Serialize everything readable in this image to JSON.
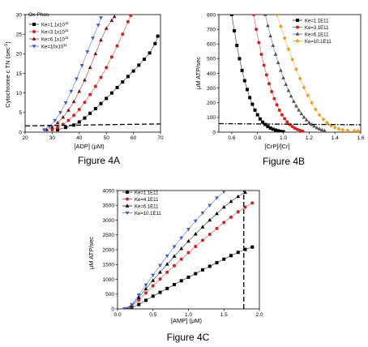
{
  "figure_4a": {
    "caption": "Figure 4A",
    "panel_label": "Ox-Phos",
    "legend": [
      {
        "label": "Ke=1.1x10",
        "sup": "11"
      },
      {
        "label": "Ke=3.1x10",
        "sup": "11"
      },
      {
        "label": "Ke=6.1x10",
        "sup": "11"
      },
      {
        "label": "Ke=10x10",
        "sup": "11"
      }
    ],
    "xlabel": "[ADP] (μM)",
    "ylabel_main": "Cytochrome c TN (sec",
    "ylabel_sup": "-1",
    "ylabel_end": ")",
    "xticks": [
      "20",
      "30",
      "40",
      "50",
      "60",
      "70"
    ],
    "yticks": [
      "0",
      "5",
      "10",
      "15",
      "20",
      "25",
      "30"
    ]
  },
  "figure_4b": {
    "caption": "Figure 4B",
    "legend": [
      "Ke=1.1E11",
      "Ke=3.1E11",
      "Ke=6.1E11",
      "Ke=10.1E11"
    ],
    "xlabel": "[CrP]/[Cr]",
    "ylabel": "μM ATP/sec",
    "xticks": [
      "0.6",
      "0.8",
      "1.0",
      "1.2",
      "1.4",
      "1.6"
    ],
    "yticks": [
      "0",
      "100",
      "200",
      "300",
      "400",
      "500",
      "600",
      "700",
      "800"
    ]
  },
  "figure_4c": {
    "caption": "Figure 4C",
    "legend": [
      "Ke=1.1E11",
      "Ke=4.1E11",
      "Ke=6.1E11",
      "Ke=10.1E11"
    ],
    "xlabel": "[AMP] (μM)",
    "ylabel": "μM ATP/sec",
    "xticks": [
      "0.0",
      "0.5",
      "1.0",
      "1.5",
      "2.0"
    ],
    "yticks": [
      "0",
      "500",
      "1000",
      "1500",
      "2000",
      "2500",
      "3000",
      "3500",
      "4000"
    ]
  },
  "colors": {
    "black": "#000000",
    "red": "#d62020",
    "darkred": "#7a1010",
    "blue": "#3a5bd9",
    "orange": "#f0a020",
    "gray": "#555555"
  },
  "chart_data": [
    {
      "type": "line",
      "xlim": [
        20,
        70
      ],
      "ylim": [
        0,
        30
      ],
      "series": [
        {
          "name": "Ke=1.1x10^11",
          "marker": "square",
          "color": "black",
          "points": [
            [
              32,
              0.6
            ],
            [
              35,
              1.2
            ],
            [
              38,
              1.8
            ],
            [
              40,
              2.6
            ],
            [
              42,
              3.6
            ],
            [
              44,
              4.8
            ],
            [
              46,
              6.0
            ],
            [
              48,
              7.3
            ],
            [
              50,
              8.6
            ],
            [
              52,
              10.0
            ],
            [
              54,
              11.4
            ],
            [
              56,
              12.8
            ],
            [
              58,
              14.2
            ],
            [
              60,
              15.6
            ],
            [
              62,
              17.1
            ],
            [
              64,
              18.6
            ],
            [
              66,
              20.2
            ],
            [
              68,
              22.6
            ],
            [
              69,
              24.5
            ]
          ]
        },
        {
          "name": "Ke=3.1x10^11",
          "marker": "circle",
          "color": "red",
          "points": [
            [
              30,
              0.6
            ],
            [
              32,
              1.2
            ],
            [
              34,
              2.0
            ],
            [
              36,
              3.0
            ],
            [
              38,
              4.3
            ],
            [
              40,
              5.8
            ],
            [
              42,
              7.6
            ],
            [
              44,
              9.6
            ],
            [
              46,
              11.7
            ],
            [
              48,
              14.0
            ],
            [
              50,
              16.5
            ],
            [
              52,
              19.2
            ],
            [
              54,
              22.0
            ],
            [
              56,
              25.0
            ],
            [
              58,
              28.2
            ],
            [
              59,
              29.8
            ]
          ]
        },
        {
          "name": "Ke=6.1x10^11",
          "marker": "triangle",
          "color": "darkred",
          "points": [
            [
              28,
              0.6
            ],
            [
              30,
              1.3
            ],
            [
              32,
              2.4
            ],
            [
              34,
              3.8
            ],
            [
              36,
              5.6
            ],
            [
              38,
              7.8
            ],
            [
              40,
              10.4
            ],
            [
              42,
              13.3
            ],
            [
              44,
              16.5
            ],
            [
              46,
              20.0
            ],
            [
              48,
              23.5
            ],
            [
              50,
              26.5
            ],
            [
              52,
              28.5
            ],
            [
              53,
              29.5
            ]
          ]
        },
        {
          "name": "Ke=10x10^11",
          "marker": "triangle-down",
          "color": "blue",
          "points": [
            [
              27,
              0.6
            ],
            [
              29,
              1.5
            ],
            [
              31,
              3.0
            ],
            [
              33,
              5.0
            ],
            [
              35,
              7.5
            ],
            [
              37,
              10.4
            ],
            [
              39,
              13.6
            ],
            [
              41,
              17.0
            ],
            [
              43,
              20.5
            ],
            [
              45,
              24.0
            ],
            [
              47,
              27.3
            ],
            [
              48,
              29.2
            ]
          ]
        },
        {
          "name": "",
          "style": "dashed",
          "color": "black",
          "points": [
            [
              20,
              1.6
            ],
            [
              70,
              2.1
            ]
          ]
        }
      ]
    },
    {
      "type": "line",
      "xlim": [
        0.5,
        1.6
      ],
      "ylim": [
        0,
        800
      ],
      "series": [
        {
          "name": "Ke=1.1E11",
          "marker": "square",
          "color": "black",
          "points": [
            [
              0.6,
              800
            ],
            [
              0.62,
              690
            ],
            [
              0.64,
              590
            ],
            [
              0.66,
              500
            ],
            [
              0.68,
              420
            ],
            [
              0.7,
              350
            ],
            [
              0.72,
              290
            ],
            [
              0.74,
              235
            ],
            [
              0.76,
              190
            ],
            [
              0.78,
              150
            ],
            [
              0.8,
              118
            ],
            [
              0.82,
              90
            ],
            [
              0.84,
              68
            ],
            [
              0.86,
              52
            ],
            [
              0.88,
              38
            ],
            [
              0.9,
              28
            ],
            [
              0.92,
              20
            ],
            [
              0.94,
              14
            ],
            [
              0.96,
              9
            ],
            [
              0.98,
              5
            ],
            [
              1.0,
              3
            ]
          ]
        },
        {
          "name": "Ke=3.1E11",
          "marker": "circle",
          "color": "red",
          "points": [
            [
              0.77,
              800
            ],
            [
              0.79,
              700
            ],
            [
              0.81,
              610
            ],
            [
              0.83,
              530
            ],
            [
              0.85,
              455
            ],
            [
              0.87,
              390
            ],
            [
              0.89,
              330
            ],
            [
              0.91,
              276
            ],
            [
              0.93,
              228
            ],
            [
              0.95,
              186
            ],
            [
              0.97,
              150
            ],
            [
              0.99,
              118
            ],
            [
              1.01,
              92
            ],
            [
              1.03,
              70
            ],
            [
              1.05,
              52
            ],
            [
              1.07,
              38
            ],
            [
              1.09,
              27
            ],
            [
              1.11,
              18
            ],
            [
              1.13,
              12
            ],
            [
              1.15,
              7
            ]
          ]
        },
        {
          "name": "Ke=6.1E11",
          "marker": "triangle",
          "color": "gray",
          "points": [
            [
              0.86,
              800
            ],
            [
              0.88,
              725
            ],
            [
              0.9,
              655
            ],
            [
              0.92,
              590
            ],
            [
              0.94,
              530
            ],
            [
              0.96,
              473
            ],
            [
              0.98,
              420
            ],
            [
              1.0,
              370
            ],
            [
              1.02,
              325
            ],
            [
              1.04,
              283
            ],
            [
              1.06,
              245
            ],
            [
              1.08,
              210
            ],
            [
              1.1,
              178
            ],
            [
              1.12,
              150
            ],
            [
              1.14,
              125
            ],
            [
              1.16,
              102
            ],
            [
              1.18,
              83
            ],
            [
              1.2,
              66
            ],
            [
              1.22,
              52
            ],
            [
              1.24,
              40
            ],
            [
              1.26,
              30
            ],
            [
              1.28,
              22
            ],
            [
              1.3,
              15
            ],
            [
              1.32,
              10
            ]
          ]
        },
        {
          "name": "Ke=10.1E11",
          "marker": "diamond",
          "color": "orange",
          "points": [
            [
              0.95,
              800
            ],
            [
              0.98,
              720
            ],
            [
              1.01,
              640
            ],
            [
              1.04,
              565
            ],
            [
              1.07,
              495
            ],
            [
              1.1,
              428
            ],
            [
              1.13,
              365
            ],
            [
              1.16,
              305
            ],
            [
              1.19,
              250
            ],
            [
              1.22,
              200
            ],
            [
              1.25,
              155
            ],
            [
              1.28,
              118
            ],
            [
              1.31,
              88
            ],
            [
              1.34,
              64
            ],
            [
              1.37,
              45
            ],
            [
              1.4,
              32
            ],
            [
              1.43,
              22
            ],
            [
              1.46,
              16
            ],
            [
              1.5,
              12
            ],
            [
              1.55,
              10
            ],
            [
              1.58,
              9
            ]
          ]
        },
        {
          "name": "",
          "style": "dashdot",
          "color": "black",
          "points": [
            [
              0.5,
              58
            ],
            [
              1.6,
              50
            ]
          ]
        }
      ]
    },
    {
      "type": "line",
      "xlim": [
        0.0,
        2.0
      ],
      "ylim": [
        0,
        4000
      ],
      "series": [
        {
          "name": "Ke=1.1E11",
          "marker": "square",
          "color": "black",
          "points": [
            [
              0.1,
              0
            ],
            [
              0.2,
              40
            ],
            [
              0.3,
              150
            ],
            [
              0.4,
              290
            ],
            [
              0.5,
              430
            ],
            [
              0.6,
              560
            ],
            [
              0.7,
              690
            ],
            [
              0.8,
              820
            ],
            [
              0.9,
              950
            ],
            [
              1.0,
              1070
            ],
            [
              1.1,
              1190
            ],
            [
              1.2,
              1320
            ],
            [
              1.3,
              1440
            ],
            [
              1.4,
              1560
            ],
            [
              1.5,
              1680
            ],
            [
              1.6,
              1800
            ],
            [
              1.7,
              1910
            ],
            [
              1.8,
              2010
            ],
            [
              1.9,
              2090
            ]
          ]
        },
        {
          "name": "Ke=4.1E11",
          "marker": "circle",
          "color": "red",
          "points": [
            [
              0.1,
              0
            ],
            [
              0.2,
              80
            ],
            [
              0.3,
              300
            ],
            [
              0.4,
              540
            ],
            [
              0.5,
              780
            ],
            [
              0.6,
              1010
            ],
            [
              0.7,
              1240
            ],
            [
              0.8,
              1460
            ],
            [
              0.9,
              1680
            ],
            [
              1.0,
              1900
            ],
            [
              1.1,
              2110
            ],
            [
              1.2,
              2320
            ],
            [
              1.3,
              2520
            ],
            [
              1.4,
              2720
            ],
            [
              1.5,
              2920
            ],
            [
              1.6,
              3100
            ],
            [
              1.7,
              3280
            ],
            [
              1.8,
              3440
            ],
            [
              1.9,
              3580
            ]
          ]
        },
        {
          "name": "Ke=6.1E11",
          "marker": "triangle",
          "color": "black",
          "points": [
            [
              0.1,
              0
            ],
            [
              0.2,
              110
            ],
            [
              0.3,
              390
            ],
            [
              0.4,
              680
            ],
            [
              0.5,
              960
            ],
            [
              0.6,
              1240
            ],
            [
              0.7,
              1510
            ],
            [
              0.8,
              1780
            ],
            [
              0.9,
              2040
            ],
            [
              1.0,
              2290
            ],
            [
              1.1,
              2530
            ],
            [
              1.2,
              2770
            ],
            [
              1.3,
              3000
            ],
            [
              1.4,
              3220
            ],
            [
              1.5,
              3440
            ],
            [
              1.6,
              3630
            ],
            [
              1.7,
              3800
            ],
            [
              1.8,
              3940
            ]
          ]
        },
        {
          "name": "Ke=10.1E11",
          "marker": "triangle-down",
          "color": "blue",
          "points": [
            [
              0.1,
              0
            ],
            [
              0.2,
              140
            ],
            [
              0.3,
              470
            ],
            [
              0.4,
              810
            ],
            [
              0.5,
              1140
            ],
            [
              0.6,
              1470
            ],
            [
              0.7,
              1790
            ],
            [
              0.8,
              2100
            ],
            [
              0.9,
              2400
            ],
            [
              1.0,
              2690
            ],
            [
              1.1,
              2970
            ],
            [
              1.2,
              3240
            ],
            [
              1.3,
              3500
            ],
            [
              1.4,
              3750
            ],
            [
              1.5,
              3960
            ]
          ]
        },
        {
          "name": "",
          "style": "dashed-vertical",
          "color": "black",
          "points": [
            [
              1.78,
              0
            ],
            [
              1.78,
              4000
            ]
          ]
        }
      ]
    }
  ]
}
